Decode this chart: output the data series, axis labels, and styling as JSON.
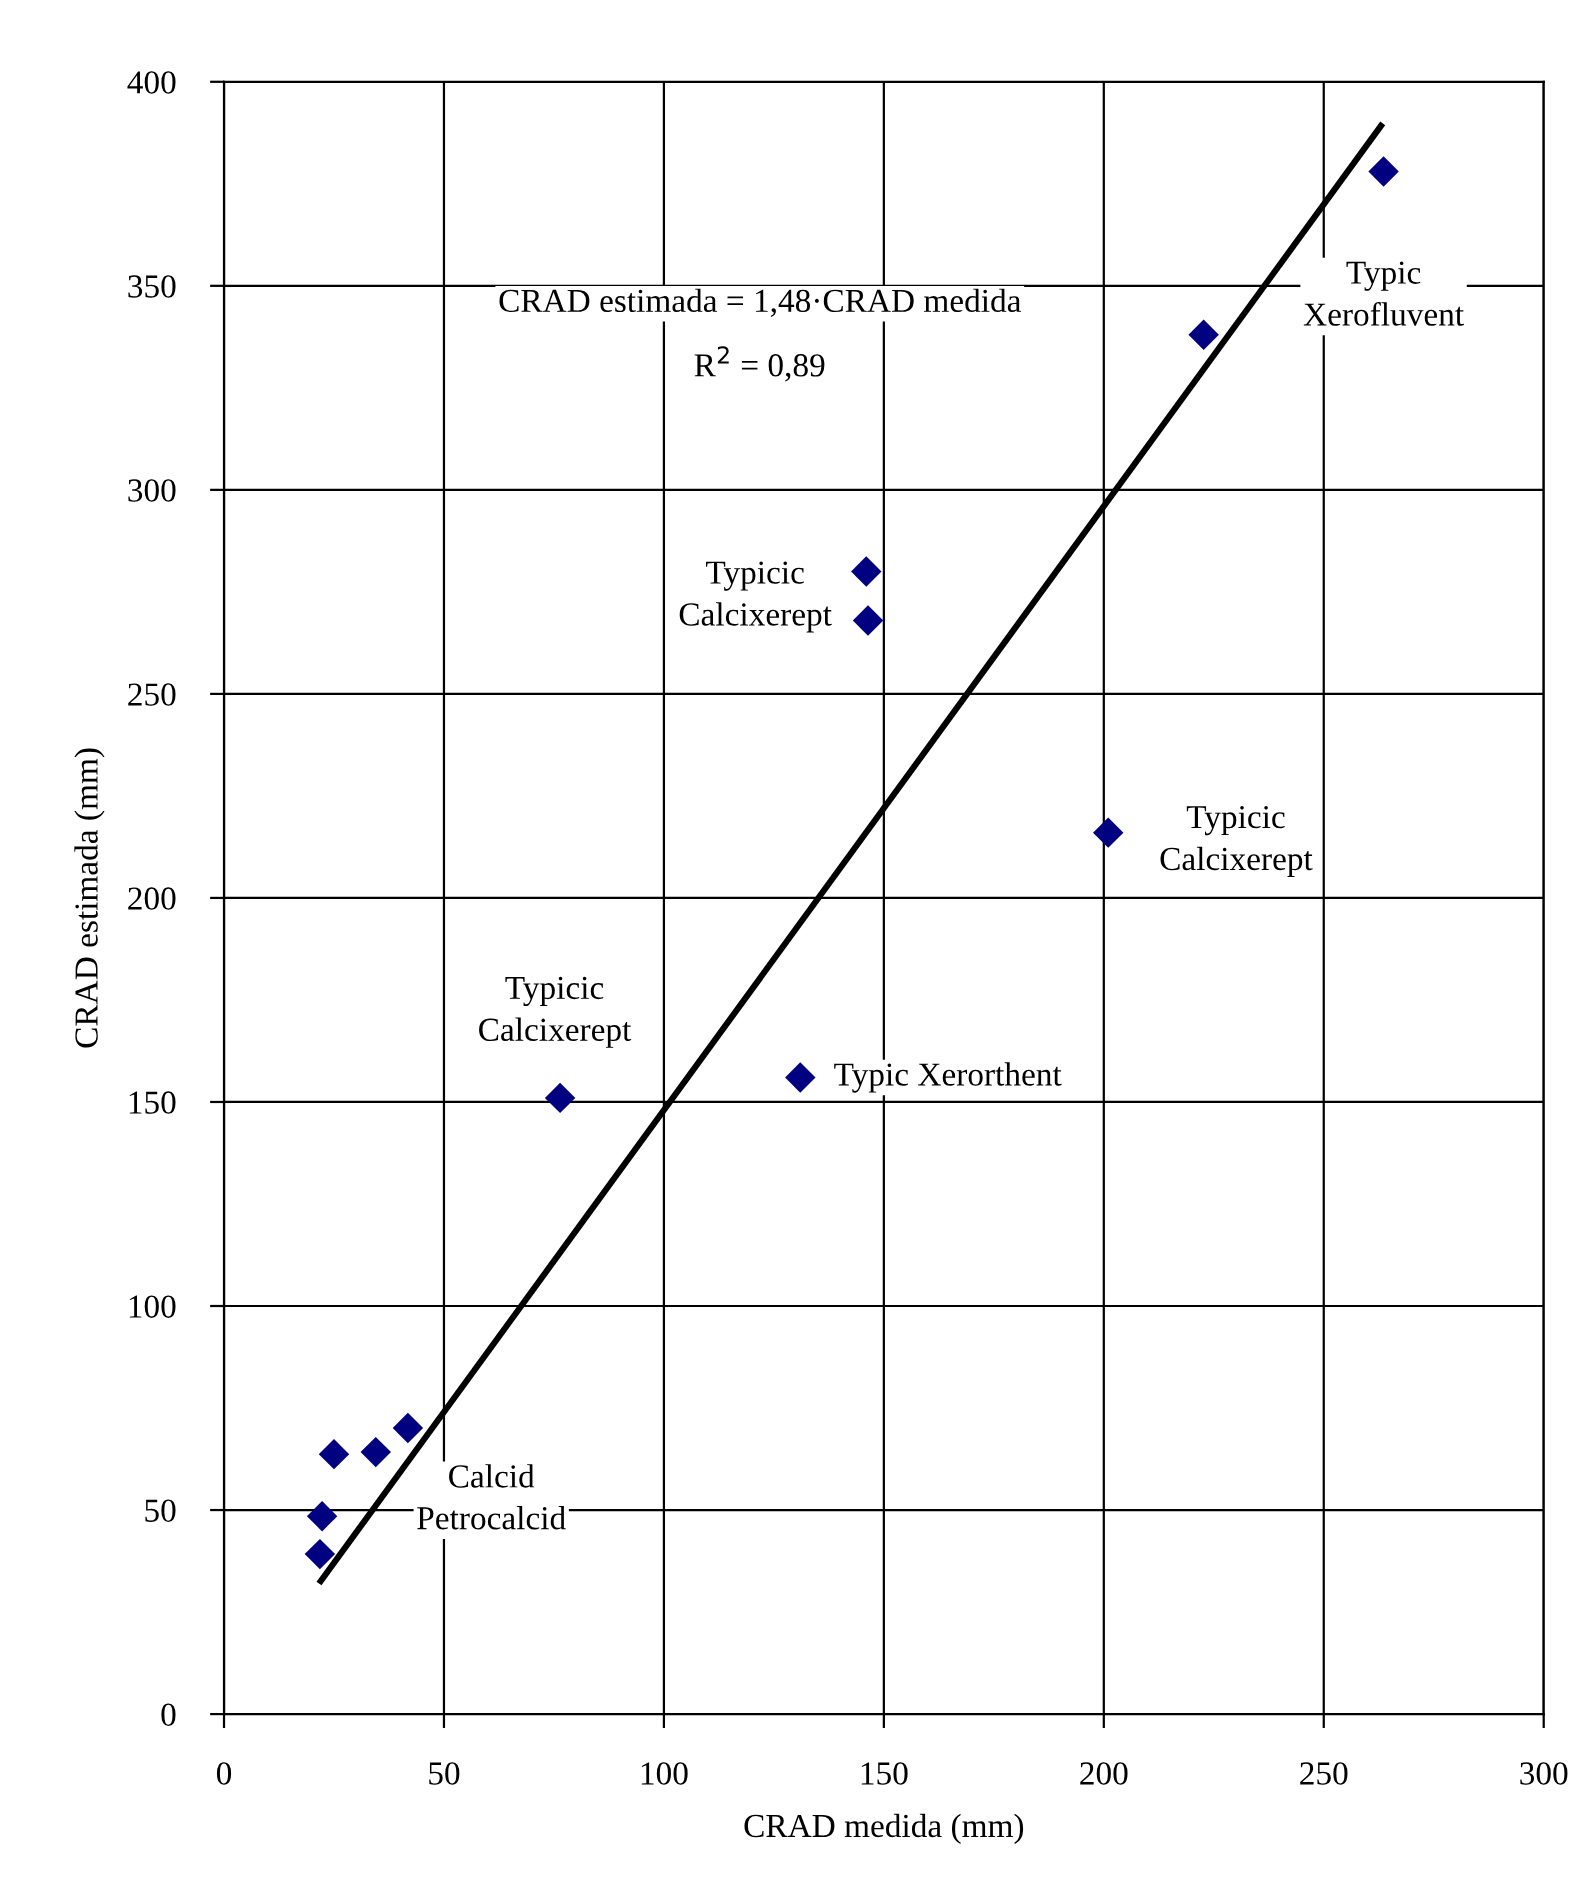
{
  "chart_data": {
    "type": "scatter",
    "xlabel": "CRAD medida (mm)",
    "ylabel": "CRAD estimada (mm)",
    "xlim": [
      0,
      300
    ],
    "xticks": [
      0,
      50,
      100,
      150,
      200,
      250,
      300
    ],
    "ylim": [
      0,
      400
    ],
    "yticks": [
      0,
      50,
      100,
      150,
      200,
      250,
      300,
      350,
      400
    ],
    "grid": true,
    "series": [
      {
        "color": "#000080",
        "marker": "diamond",
        "x": [
          21.8,
          22.3,
          25,
          34.5,
          41.8,
          76.4,
          131,
          146,
          146.4,
          201,
          222.7,
          263.6
        ],
        "values": [
          39.2,
          48.5,
          63.7,
          64.2,
          70.1,
          151,
          156,
          280,
          268,
          216,
          338,
          378
        ]
      },
      {
        "type": "line",
        "color": "#000000",
        "marker": "none",
        "line_style": "solid",
        "x": [
          22,
          263
        ],
        "values": [
          32.6,
          389.2
        ]
      }
    ],
    "annotations": [
      "CRAD estimada = 1,48·CRAD medida",
      "R$^{2}$ = 0,89",
      {
        "text": "Calcid\nPetrocalcid",
        "x": 41.8,
        "y": 70.1
      },
      {
        "text": "Typicic\nCalcixerept",
        "x": 146,
        "y": 280
      },
      {
        "text": "Typicic\nCalcixerept",
        "x": 201,
        "y": 216
      },
      {
        "text": "Typicic\nCalcixerept",
        "x": 76.4,
        "y": 151
      },
      {
        "text": "Typic Xerorthent",
        "x": 131,
        "y": 156
      },
      {
        "text": "Typic\nXerofluvent",
        "x": 263.6,
        "y": 378
      }
    ]
  }
}
